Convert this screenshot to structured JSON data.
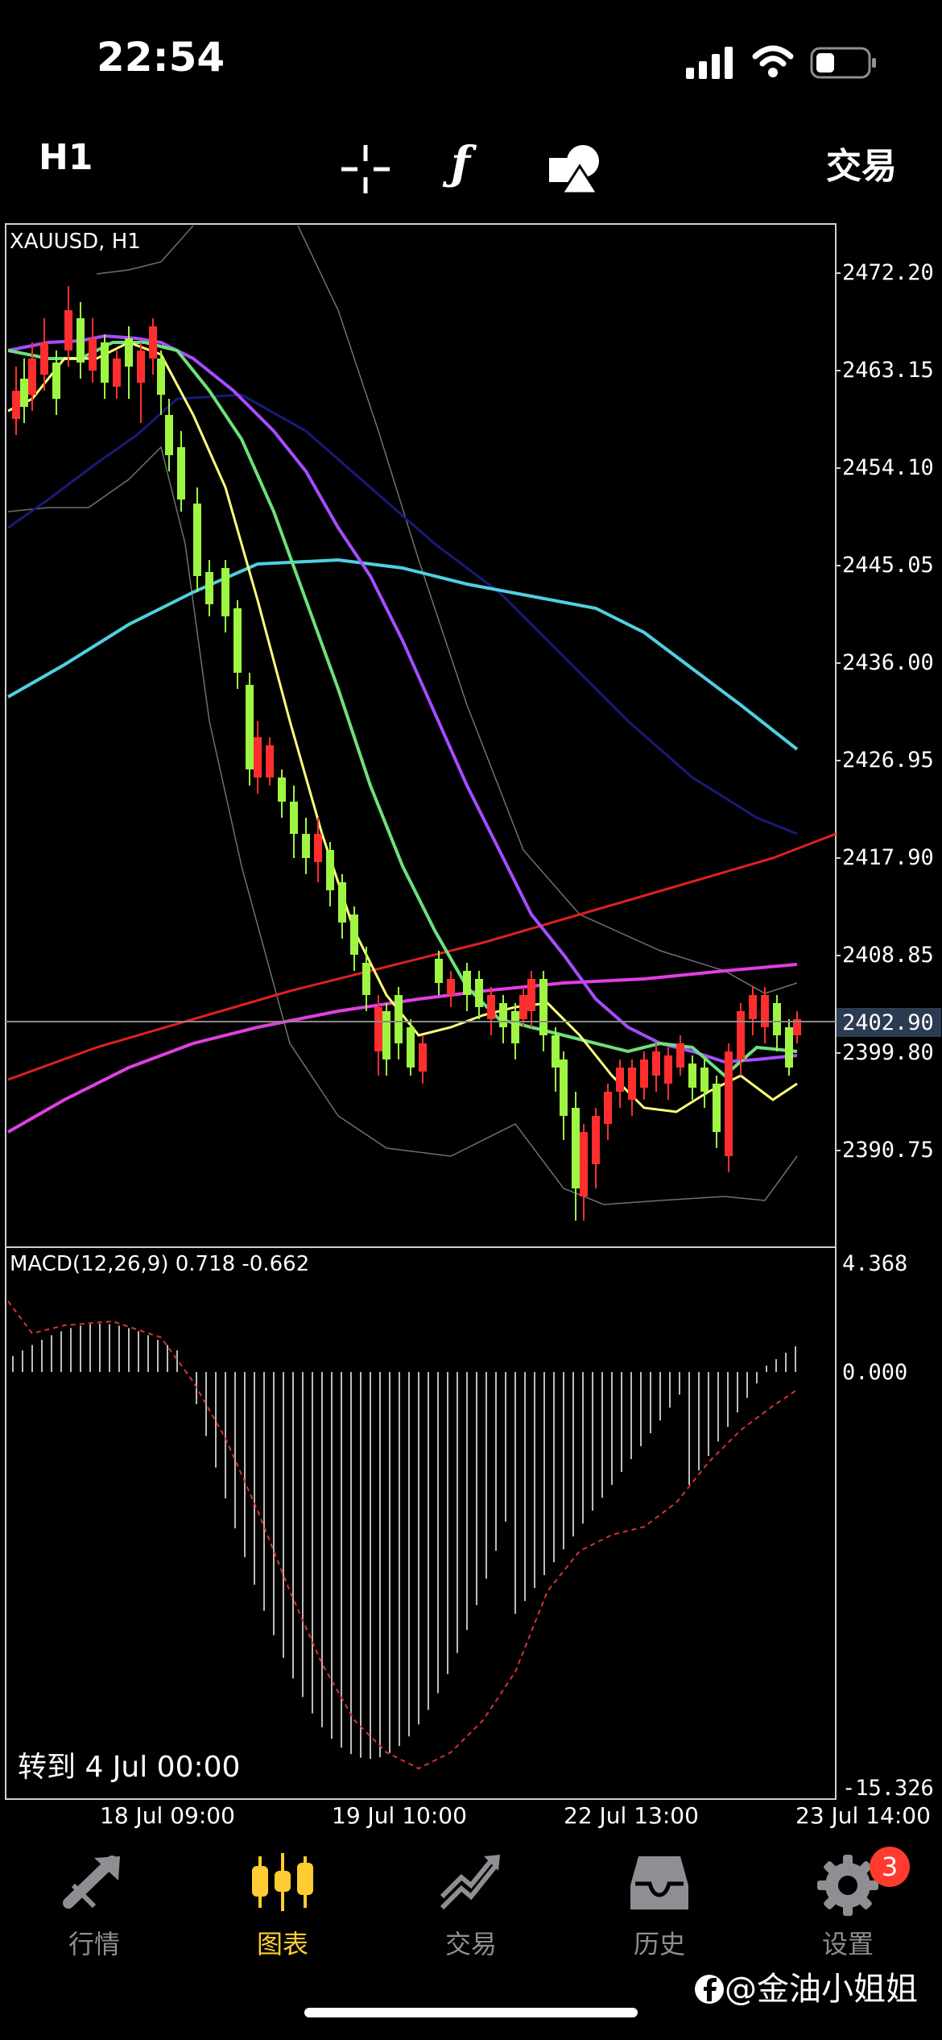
{
  "status_bar": {
    "time": "22:54"
  },
  "toolbar": {
    "timeframe": "H1",
    "crosshair_icon": "crosshair-icon",
    "indicator_label": "ƒ",
    "objects_icon": "shapes-icon",
    "trade_label": "交易"
  },
  "chart": {
    "symbol_label": "XAUUSD, H1",
    "price_ticks": [
      "2472.20",
      "2463.15",
      "2454.10",
      "2445.05",
      "2436.00",
      "2426.95",
      "2417.90",
      "2408.85",
      "2399.80",
      "2390.75"
    ],
    "current_price": "2402.90",
    "macd_label": "MACD(12,26,9) 0.718 -0.662",
    "macd_ticks": [
      "4.368",
      "0.000",
      "-15.326"
    ],
    "goto_label": "转到 4 Jul 00:00",
    "time_ticks": [
      "18 Jul 09:00",
      "19 Jul 10:00",
      "22 Jul 13:00",
      "23 Jul 14:00"
    ],
    "colors": {
      "bull": "#9ef542",
      "bear": "#ff2e2e",
      "ma_yellow": "#ffff7a",
      "ma_green": "#6ee07a",
      "ma_purple": "#a64dff",
      "ma_navy": "#1a1a7a",
      "ma_cyan": "#4fd0e0",
      "ma_magenta": "#e040e0",
      "trendline": "#e02020",
      "bollinger": "#707070"
    }
  },
  "chart_data": [
    {
      "type": "line",
      "title": "XAUUSD, H1",
      "x": [
        "18 Jul 09:00",
        "19 Jul 10:00",
        "22 Jul 13:00",
        "23 Jul 14:00"
      ],
      "ylim": [
        2384,
        2477
      ],
      "series": [
        {
          "name": "XAUUSD",
          "values": [
            2466,
            2405,
            2395,
            2403
          ]
        }
      ],
      "last_price": 2402.9
    },
    {
      "type": "bar",
      "title": "MACD(12,26,9) 0.718 -0.662",
      "ylim": [
        -15.326,
        4.368
      ],
      "macd": 0.718,
      "signal": -0.662
    }
  ],
  "bottom_nav": [
    {
      "label": "行情",
      "icon": "quotes-icon"
    },
    {
      "label": "图表",
      "icon": "chart-icon"
    },
    {
      "label": "交易",
      "icon": "trade-icon"
    },
    {
      "label": "历史",
      "icon": "history-icon"
    },
    {
      "label": "设置",
      "icon": "settings-icon",
      "badge": "3"
    }
  ],
  "watermark": "@金油小姐姐"
}
